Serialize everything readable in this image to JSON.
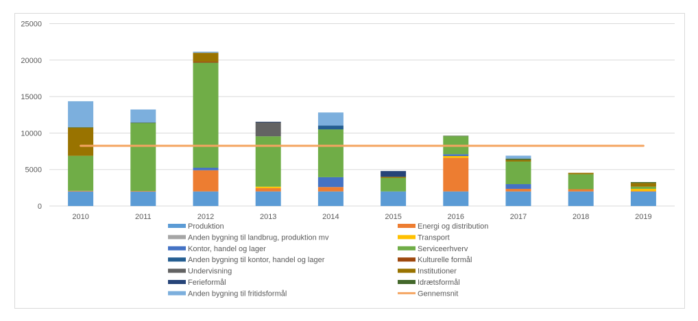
{
  "chart_data": {
    "type": "bar",
    "stacked": true,
    "title": "",
    "xlabel": "",
    "ylabel": "",
    "ylim": [
      0,
      25000
    ],
    "yticks": [
      0,
      5000,
      10000,
      15000,
      20000,
      25000
    ],
    "ytick_labels": [
      "0",
      "5000",
      "10000",
      "15000",
      "20000",
      "25000"
    ],
    "grid": true,
    "legend_position": "bottom",
    "categories": [
      "2010",
      "2011",
      "2012",
      "2013",
      "2014",
      "2015",
      "2016",
      "2017",
      "2018",
      "2019"
    ],
    "series": [
      {
        "name": "Produktion",
        "color": "#5b9bd5",
        "values": [
          2000,
          2000,
          2000,
          2000,
          2000,
          2000,
          2000,
          2000,
          2000,
          2000
        ]
      },
      {
        "name": "Energi og distribution",
        "color": "#ed7d31",
        "values": [
          80,
          50,
          2900,
          450,
          600,
          0,
          4600,
          350,
          300,
          50
        ]
      },
      {
        "name": "Anden bygning til landbrug, produktion mv",
        "color": "#a5a5a5",
        "values": [
          0,
          0,
          0,
          0,
          0,
          0,
          0,
          0,
          0,
          0
        ]
      },
      {
        "name": "Transport",
        "color": "#ffc000",
        "values": [
          0,
          0,
          0,
          200,
          0,
          0,
          250,
          0,
          0,
          300
        ]
      },
      {
        "name": "Kontor, handel og lager",
        "color": "#4472c4",
        "values": [
          0,
          0,
          350,
          0,
          1350,
          0,
          250,
          650,
          0,
          0
        ]
      },
      {
        "name": "Serviceerhverv",
        "color": "#70ad47",
        "values": [
          4800,
          9300,
          14400,
          6900,
          6550,
          1850,
          2450,
          3100,
          2050,
          300
        ]
      },
      {
        "name": "Anden bygning til kontor, handel og lager",
        "color": "#255e91",
        "values": [
          0,
          0,
          0,
          0,
          520,
          0,
          0,
          0,
          0,
          0
        ]
      },
      {
        "name": "Kulturelle formål",
        "color": "#9e480e",
        "values": [
          0,
          0,
          150,
          0,
          0,
          0,
          0,
          0,
          0,
          0
        ]
      },
      {
        "name": "Undervisning",
        "color": "#636363",
        "values": [
          0,
          0,
          0,
          1950,
          0,
          0,
          0,
          0,
          0,
          0
        ]
      },
      {
        "name": "Institutioner",
        "color": "#997300",
        "values": [
          3850,
          0,
          1200,
          0,
          0,
          150,
          0,
          220,
          200,
          500
        ]
      },
      {
        "name": "Ferieformål",
        "color": "#264478",
        "values": [
          0,
          0,
          0,
          50,
          0,
          800,
          0,
          0,
          0,
          0
        ]
      },
      {
        "name": "Idrætsformål",
        "color": "#43682b",
        "values": [
          80,
          80,
          0,
          0,
          0,
          0,
          80,
          180,
          0,
          130
        ]
      },
      {
        "name": "Anden bygning til fritidsformål",
        "color": "#7cafdd",
        "values": [
          3550,
          1800,
          150,
          0,
          1800,
          0,
          0,
          400,
          0,
          0
        ]
      }
    ],
    "line_series": {
      "name": "Gennemsnit",
      "color": "#f4a460",
      "value": 8250,
      "type": "line"
    },
    "legend": [
      "Produktion",
      "Energi og distribution",
      "Anden bygning til landbrug, produktion mv",
      "Transport",
      "Kontor, handel og lager",
      "Serviceerhverv",
      "Anden bygning til kontor, handel og lager",
      "Kulturelle formål",
      "Undervisning",
      "Institutioner",
      "Ferieformål",
      "Idrætsformål",
      "Anden bygning til fritidsformål",
      "Gennemsnit"
    ]
  }
}
